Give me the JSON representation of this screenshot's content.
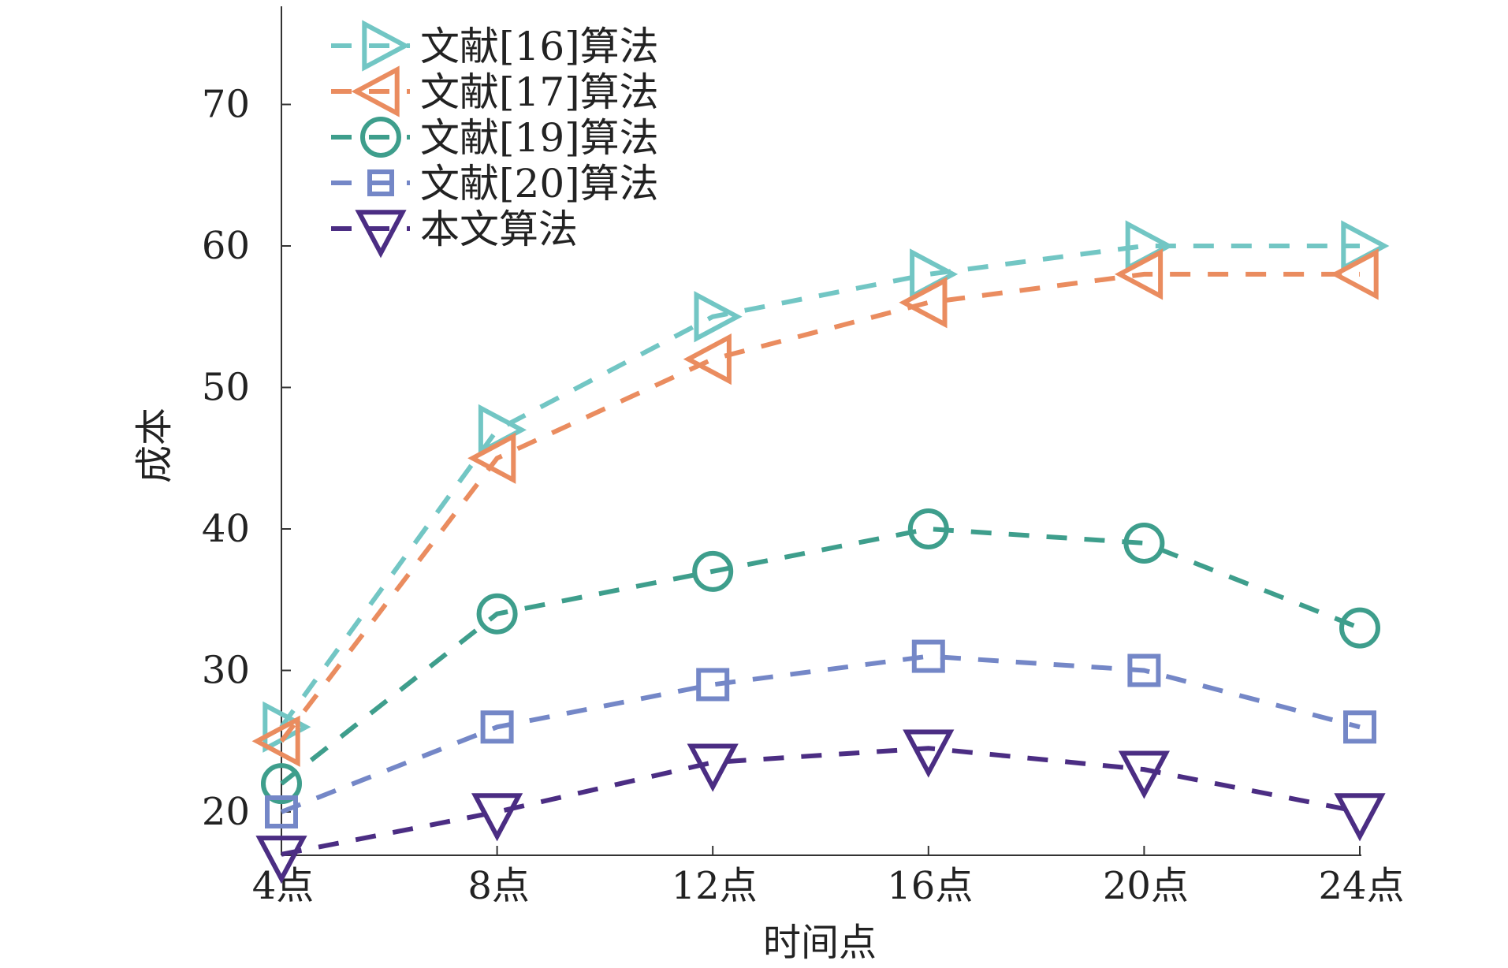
{
  "chart_data": {
    "type": "line",
    "title": "",
    "xlabel": "时间点",
    "ylabel": "成本",
    "categories": [
      "4点",
      "8点",
      "12点",
      "16点",
      "20点",
      "24点"
    ],
    "ylim": [
      15,
      75
    ],
    "yticks": [
      20,
      30,
      40,
      50,
      60,
      70
    ],
    "grid": false,
    "legend_position": "top-left",
    "line_style": "dashed",
    "series": [
      {
        "name": "文献[16]算法",
        "marker": "triangle-right",
        "color": "#72c6c4",
        "values": [
          26,
          47,
          55,
          58,
          60,
          60
        ]
      },
      {
        "name": "文献[17]算法",
        "marker": "triangle-left",
        "color": "#ea8c5f",
        "values": [
          25,
          45,
          52,
          56,
          58,
          58
        ]
      },
      {
        "name": "文献[19]算法",
        "marker": "circle",
        "color": "#3e9e8c",
        "values": [
          22,
          34,
          37,
          40,
          39,
          33
        ]
      },
      {
        "name": "文献[20]算法",
        "marker": "square",
        "color": "#7487c7",
        "values": [
          20,
          26,
          29,
          31,
          30,
          26
        ]
      },
      {
        "name": "本文算法",
        "marker": "triangle-down",
        "color": "#4b2d83",
        "values": [
          17,
          20,
          23.5,
          24.5,
          23,
          20
        ]
      }
    ]
  }
}
